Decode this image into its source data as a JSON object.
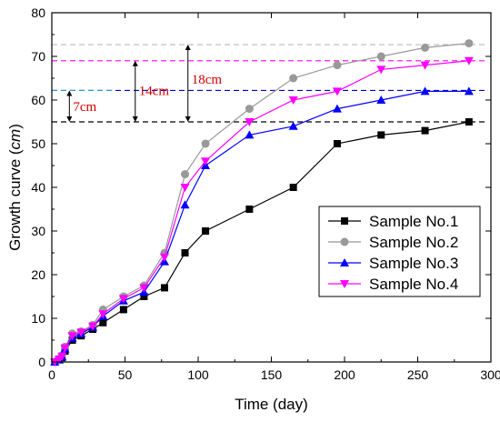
{
  "chart_data": {
    "type": "line",
    "xlabel": "Time (day)",
    "ylabel": "Growth curve (cm)",
    "xlim": [
      0,
      300
    ],
    "ylim": [
      0,
      80
    ],
    "xticks": [
      0,
      50,
      100,
      150,
      200,
      250,
      300
    ],
    "yticks": [
      0,
      10,
      20,
      30,
      40,
      50,
      60,
      70,
      80
    ],
    "legend_position": "bottom-right",
    "series": [
      {
        "name": "Sample No.1",
        "color": "#000000",
        "marker": "square",
        "x": [
          2,
          5,
          7,
          9,
          14,
          20,
          28,
          35,
          49,
          63,
          77,
          91,
          105,
          135,
          165,
          195,
          225,
          255,
          285
        ],
        "y": [
          0,
          0.5,
          1,
          2.5,
          5,
          6,
          7.5,
          9,
          12,
          15,
          17,
          25,
          30,
          35,
          40,
          50,
          52,
          53,
          55
        ]
      },
      {
        "name": "Sample No.2",
        "color": "#999999",
        "marker": "circle",
        "x": [
          2,
          5,
          7,
          9,
          14,
          20,
          28,
          35,
          49,
          63,
          77,
          91,
          105,
          135,
          165,
          195,
          225,
          255,
          285
        ],
        "y": [
          0,
          0.8,
          1.5,
          3.5,
          6.5,
          7,
          8.5,
          12,
          15,
          17.5,
          25,
          43,
          50,
          58,
          65,
          68,
          70,
          72,
          73
        ]
      },
      {
        "name": "Sample No.3",
        "color": "#0000ff",
        "marker": "triangle-up",
        "x": [
          2,
          5,
          7,
          9,
          14,
          20,
          28,
          35,
          49,
          63,
          77,
          91,
          105,
          135,
          165,
          195,
          225,
          255,
          285
        ],
        "y": [
          0,
          0.5,
          1.2,
          3,
          5.5,
          6.5,
          8,
          10.5,
          14,
          16,
          23,
          36,
          45,
          52,
          54,
          58,
          60,
          62,
          62
        ]
      },
      {
        "name": "Sample No.4",
        "color": "#ff00ff",
        "marker": "triangle-down",
        "x": [
          2,
          5,
          7,
          9,
          14,
          20,
          28,
          35,
          49,
          63,
          77,
          91,
          105,
          135,
          165,
          195,
          225,
          255,
          285
        ],
        "y": [
          0,
          0.6,
          1.3,
          3.2,
          6,
          6.8,
          8.2,
          11,
          14.5,
          17,
          24,
          40,
          46,
          55,
          60,
          62,
          67,
          68,
          69
        ]
      }
    ],
    "reference_lines": [
      {
        "y": 72.7,
        "color": "#bbbbbb"
      },
      {
        "y": 69,
        "color": "#ff00ff"
      },
      {
        "y": 62.2,
        "color": "#0000cc"
      },
      {
        "y": 55,
        "color": "#000000"
      }
    ],
    "annotations": [
      {
        "text": "7cm",
        "x": 12,
        "y_from": 55,
        "y_to": 62.2,
        "label_y": 58.5
      },
      {
        "text": "14cm",
        "x": 57,
        "y_from": 55,
        "y_to": 69,
        "label_y": 62.2
      },
      {
        "text": "18cm",
        "x": 93,
        "y_from": 55,
        "y_to": 72.7,
        "label_y": 64.8
      }
    ]
  }
}
